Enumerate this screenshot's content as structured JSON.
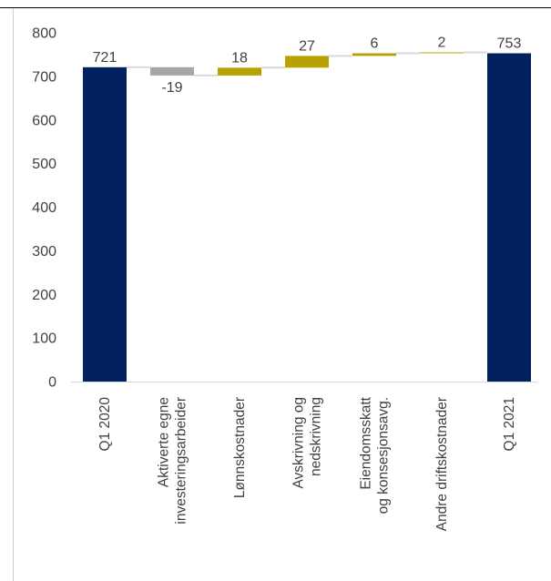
{
  "chart_data": {
    "type": "bar",
    "subtype": "waterfall",
    "title": "",
    "xlabel": "",
    "ylabel": "",
    "ylim": [
      0,
      800
    ],
    "yticks": [
      0,
      100,
      200,
      300,
      400,
      500,
      600,
      700,
      800
    ],
    "grid": false,
    "legend": "none",
    "categories": [
      [
        "Q1 2020"
      ],
      [
        "Aktiverte egne",
        "investeringsarbeider"
      ],
      [
        "Lønnskostnader"
      ],
      [
        "Avskrivning og",
        "nedskrivning"
      ],
      [
        "Eiendomsskatt",
        "og konsesjonsavg."
      ],
      [
        "Andre driftskostnader"
      ],
      [
        "Q1 2021"
      ]
    ],
    "bars": [
      {
        "kind": "total",
        "value": 721,
        "label": "721",
        "color": "#002060"
      },
      {
        "kind": "delta",
        "value": -19,
        "label": "-19",
        "color": "#a6a6a6"
      },
      {
        "kind": "delta",
        "value": 18,
        "label": "18",
        "color": "#b8a200"
      },
      {
        "kind": "delta",
        "value": 27,
        "label": "27",
        "color": "#b8a200"
      },
      {
        "kind": "delta",
        "value": 6,
        "label": "6",
        "color": "#b8a200"
      },
      {
        "kind": "delta",
        "value": 2,
        "label": "2",
        "color": "#b8a200"
      },
      {
        "kind": "total",
        "value": 753,
        "label": "753",
        "color": "#002060"
      }
    ],
    "connector_color": "#d9d9d9"
  }
}
